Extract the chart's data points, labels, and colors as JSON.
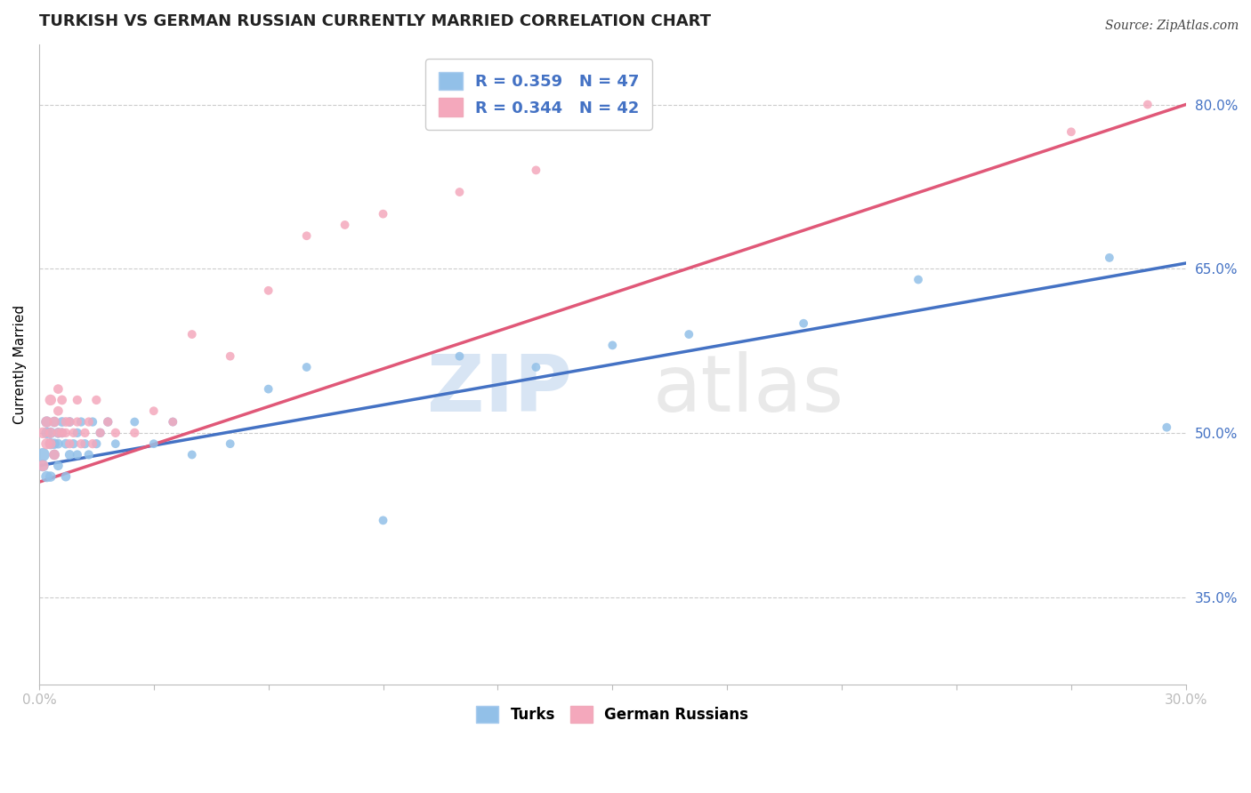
{
  "title": "TURKISH VS GERMAN RUSSIAN CURRENTLY MARRIED CORRELATION CHART",
  "source": "Source: ZipAtlas.com",
  "ylabel": "Currently Married",
  "xlim": [
    0.0,
    0.3
  ],
  "ylim": [
    0.27,
    0.855
  ],
  "ytick_positions": [
    0.35,
    0.5,
    0.65,
    0.8
  ],
  "ytick_labels": [
    "35.0%",
    "50.0%",
    "65.0%",
    "80.0%"
  ],
  "blue_color": "#92C0E8",
  "pink_color": "#F4A8BC",
  "blue_line_color": "#4472C4",
  "pink_line_color": "#E05878",
  "legend_R_blue": "R = 0.359",
  "legend_N_blue": "N = 47",
  "legend_R_pink": "R = 0.344",
  "legend_N_pink": "N = 42",
  "turks_x": [
    0.001,
    0.001,
    0.002,
    0.002,
    0.002,
    0.003,
    0.003,
    0.003,
    0.004,
    0.004,
    0.004,
    0.005,
    0.005,
    0.005,
    0.006,
    0.006,
    0.007,
    0.007,
    0.008,
    0.008,
    0.009,
    0.01,
    0.01,
    0.011,
    0.012,
    0.013,
    0.014,
    0.015,
    0.016,
    0.018,
    0.02,
    0.025,
    0.03,
    0.035,
    0.04,
    0.05,
    0.06,
    0.07,
    0.09,
    0.11,
    0.13,
    0.15,
    0.17,
    0.2,
    0.23,
    0.28,
    0.295
  ],
  "turks_y": [
    0.48,
    0.47,
    0.46,
    0.5,
    0.51,
    0.49,
    0.5,
    0.46,
    0.49,
    0.51,
    0.48,
    0.5,
    0.47,
    0.49,
    0.51,
    0.5,
    0.49,
    0.46,
    0.51,
    0.48,
    0.49,
    0.5,
    0.48,
    0.51,
    0.49,
    0.48,
    0.51,
    0.49,
    0.5,
    0.51,
    0.49,
    0.51,
    0.49,
    0.51,
    0.48,
    0.49,
    0.54,
    0.56,
    0.42,
    0.57,
    0.56,
    0.58,
    0.59,
    0.6,
    0.64,
    0.66,
    0.505
  ],
  "turks_sizes": [
    120,
    90,
    80,
    80,
    80,
    80,
    80,
    70,
    70,
    70,
    70,
    70,
    60,
    60,
    60,
    60,
    60,
    60,
    60,
    60,
    55,
    55,
    55,
    55,
    55,
    55,
    55,
    55,
    55,
    55,
    50,
    50,
    50,
    50,
    50,
    50,
    50,
    50,
    50,
    50,
    50,
    50,
    50,
    50,
    50,
    50,
    50
  ],
  "german_x": [
    0.001,
    0.001,
    0.002,
    0.002,
    0.003,
    0.003,
    0.003,
    0.004,
    0.004,
    0.005,
    0.005,
    0.005,
    0.006,
    0.006,
    0.007,
    0.007,
    0.008,
    0.008,
    0.009,
    0.01,
    0.01,
    0.011,
    0.012,
    0.013,
    0.014,
    0.015,
    0.016,
    0.018,
    0.02,
    0.025,
    0.03,
    0.035,
    0.04,
    0.05,
    0.06,
    0.07,
    0.08,
    0.09,
    0.11,
    0.13,
    0.27,
    0.29
  ],
  "german_y": [
    0.5,
    0.47,
    0.51,
    0.49,
    0.53,
    0.5,
    0.49,
    0.51,
    0.48,
    0.52,
    0.5,
    0.54,
    0.5,
    0.53,
    0.51,
    0.5,
    0.49,
    0.51,
    0.5,
    0.53,
    0.51,
    0.49,
    0.5,
    0.51,
    0.49,
    0.53,
    0.5,
    0.51,
    0.5,
    0.5,
    0.52,
    0.51,
    0.59,
    0.57,
    0.63,
    0.68,
    0.69,
    0.7,
    0.72,
    0.74,
    0.775,
    0.8
  ],
  "german_sizes": [
    80,
    80,
    80,
    80,
    80,
    70,
    70,
    70,
    70,
    60,
    60,
    60,
    60,
    60,
    60,
    55,
    55,
    55,
    55,
    55,
    55,
    55,
    55,
    55,
    55,
    55,
    55,
    55,
    55,
    55,
    50,
    50,
    50,
    50,
    50,
    50,
    50,
    50,
    50,
    50,
    50,
    50
  ],
  "blue_trend_x": [
    0.0,
    0.3
  ],
  "blue_trend_y": [
    0.47,
    0.655
  ],
  "pink_trend_x": [
    0.0,
    0.3
  ],
  "pink_trend_y": [
    0.455,
    0.8
  ],
  "title_fontsize": 13,
  "axis_label_fontsize": 11,
  "tick_fontsize": 11,
  "watermark_zip_color": "#B8D0EC",
  "watermark_atlas_color": "#D8D8D8"
}
